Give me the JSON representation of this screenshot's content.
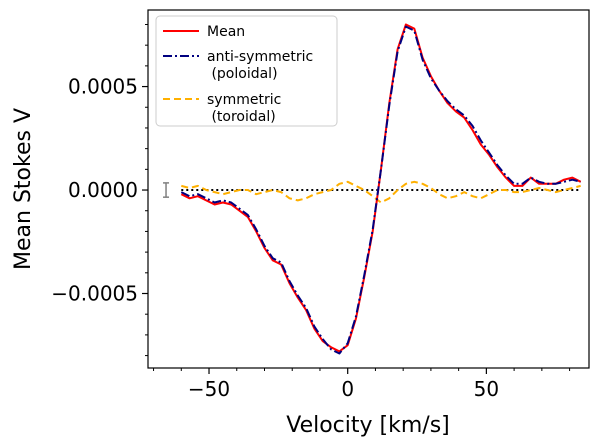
{
  "chart_data": {
    "type": "line",
    "title": "",
    "xlabel": "Velocity [km/s]",
    "ylabel": "Mean Stokes V",
    "xlim": [
      -72,
      87
    ],
    "ylim": [
      -0.00086,
      0.00087
    ],
    "x_ticks": [
      -50,
      0,
      50
    ],
    "x_tick_labels": [
      "−50",
      "0",
      "50"
    ],
    "y_ticks": [
      -0.0005,
      0.0,
      0.0005
    ],
    "y_tick_labels": [
      "−0.0005",
      "0.0000",
      "0.0005"
    ],
    "grid": false,
    "legend_position": "top-left",
    "zero_line": {
      "y": 0.0,
      "style": "dotted",
      "color": "#000000"
    },
    "error_bar": {
      "x": -65.5,
      "y": 0.0,
      "yerr": 2e-05,
      "color": "#808080"
    },
    "series": [
      {
        "name": "Mean",
        "label_lines": [
          "Mean"
        ],
        "color": "#ff0000",
        "dash": "solid",
        "x": [
          -60,
          -57,
          -54,
          -51,
          -48,
          -45,
          -42,
          -39,
          -36,
          -33,
          -30,
          -27,
          -24,
          -21,
          -18,
          -15,
          -12,
          -9,
          -6,
          -3,
          0,
          3,
          6,
          9,
          12,
          15,
          18,
          21,
          24,
          27,
          30,
          33,
          36,
          39,
          42,
          45,
          48,
          51,
          54,
          57,
          60,
          63,
          66,
          69,
          72,
          75,
          78,
          81,
          84
        ],
        "y": [
          -2e-05,
          -4e-05,
          -3e-05,
          -5e-05,
          -7e-05,
          -6e-05,
          -7e-05,
          -0.0001,
          -0.00013,
          -0.0002,
          -0.00028,
          -0.00034,
          -0.00036,
          -0.00045,
          -0.00052,
          -0.00058,
          -0.00067,
          -0.00073,
          -0.00076,
          -0.00078,
          -0.00075,
          -0.00062,
          -0.00042,
          -0.0002,
          0.0001,
          0.00042,
          0.00068,
          0.0008,
          0.00078,
          0.00064,
          0.00055,
          0.00048,
          0.00042,
          0.00038,
          0.00035,
          0.00029,
          0.00022,
          0.00017,
          0.00011,
          6e-05,
          2e-05,
          2e-05,
          6e-05,
          3e-05,
          3e-05,
          3e-05,
          5e-05,
          6e-05,
          4e-05
        ]
      },
      {
        "name": "anti-symmetric (poloidal)",
        "label_lines": [
          "anti-symmetric",
          " (poloidal)"
        ],
        "color": "#000080",
        "dash": "dashdot",
        "x": [
          -60,
          -57,
          -54,
          -51,
          -48,
          -45,
          -42,
          -39,
          -36,
          -33,
          -30,
          -27,
          -24,
          -21,
          -18,
          -15,
          -12,
          -9,
          -6,
          -3,
          0,
          3,
          6,
          9,
          12,
          15,
          18,
          21,
          24,
          27,
          30,
          33,
          36,
          39,
          42,
          45,
          48,
          51,
          54,
          57,
          60,
          63,
          66,
          69,
          72,
          75,
          78,
          81,
          84
        ],
        "y": [
          -1e-05,
          -3e-05,
          -2e-05,
          -4e-05,
          -6e-05,
          -5e-05,
          -6e-05,
          -9e-05,
          -0.00012,
          -0.00019,
          -0.00027,
          -0.00033,
          -0.00035,
          -0.00044,
          -0.00051,
          -0.00057,
          -0.00066,
          -0.00072,
          -0.00077,
          -0.00079,
          -0.00074,
          -0.00061,
          -0.00041,
          -0.00019,
          0.0001,
          0.00041,
          0.00067,
          0.00079,
          0.00077,
          0.00063,
          0.00054,
          0.00048,
          0.00043,
          0.00039,
          0.00036,
          0.00031,
          0.00024,
          0.00018,
          0.00012,
          7e-05,
          3e-05,
          3e-05,
          6e-05,
          4e-05,
          3e-05,
          3e-05,
          4e-05,
          5e-05,
          4e-05
        ]
      },
      {
        "name": "symmetric (toroidal)",
        "label_lines": [
          "symmetric",
          " (toroidal)"
        ],
        "color": "#ffb000",
        "dash": "dashed",
        "x": [
          -60,
          -57,
          -54,
          -51,
          -48,
          -45,
          -42,
          -39,
          -36,
          -33,
          -30,
          -27,
          -24,
          -21,
          -18,
          -15,
          -12,
          -9,
          -6,
          -3,
          0,
          3,
          6,
          9,
          12,
          15,
          18,
          21,
          24,
          27,
          30,
          33,
          36,
          39,
          42,
          45,
          48,
          51,
          54,
          57,
          60,
          63,
          66,
          69,
          72,
          75,
          78,
          81,
          84
        ],
        "y": [
          2e-05,
          1e-05,
          2e-05,
          0.0,
          -1e-05,
          -2e-05,
          -1e-05,
          0.0,
          0.0,
          -2e-05,
          -1e-05,
          0.0,
          -1e-05,
          -4e-05,
          -5e-05,
          -4e-05,
          -2e-05,
          -1e-05,
          0.0,
          3e-05,
          4e-05,
          2e-05,
          0.0,
          -3e-05,
          -6e-05,
          -4e-05,
          0.0,
          3e-05,
          4e-05,
          3e-05,
          1e-05,
          -2e-05,
          -4e-05,
          -3e-05,
          -1e-05,
          -3e-05,
          -4e-05,
          -2e-05,
          0.0,
          0.0,
          -1e-05,
          -1e-05,
          0.0,
          1e-05,
          0.0,
          -1e-05,
          0.0,
          1e-05,
          2e-05
        ]
      }
    ]
  }
}
